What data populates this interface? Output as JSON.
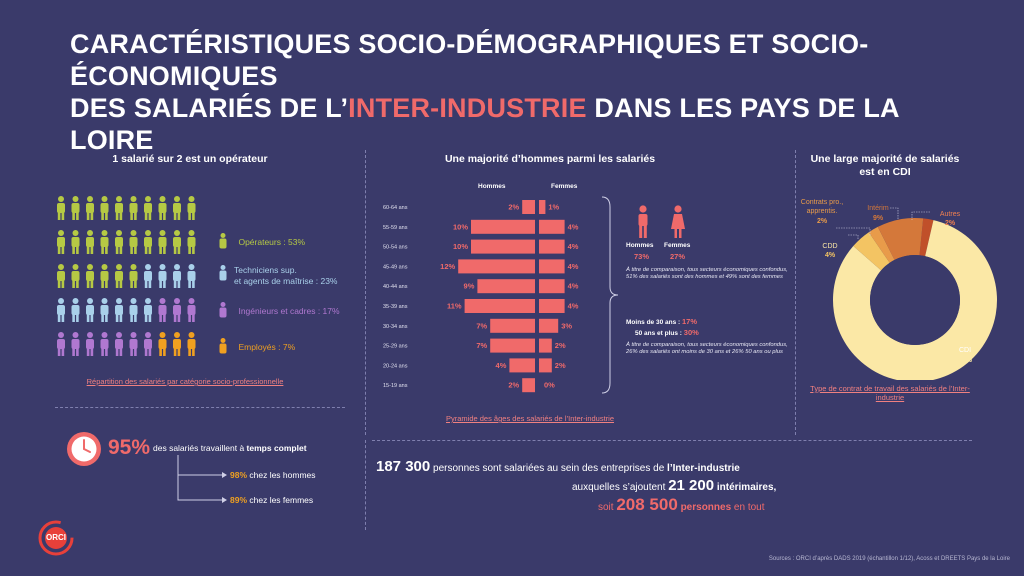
{
  "title": {
    "line1": "CARACTÉRISTIQUES SOCIO-DÉMOGRAPHIQUES ET SOCIO-ÉCONOMIQUES",
    "line2_pre": "DES SALARIÉS DE L’",
    "line2_hl": "INTER-INDUSTRIE",
    "line2_post": " DANS LES PAYS DE LA LOIRE"
  },
  "colors": {
    "background": "#3a3a6a",
    "accent": "#f06a6a",
    "operateurs": "#b6c944",
    "techniciens": "#a9d0ea",
    "ingenieurs": "#b078d0",
    "employes": "#f0a020",
    "cdi": "#fbe8a6",
    "cdd": "#f3c463",
    "interim": "#d4783a",
    "contrats": "#e89b4a",
    "autres": "#c0502a"
  },
  "section1": {
    "title": "1 salarié sur 2 est un opérateur",
    "legend": [
      {
        "label": "Opérateurs : 53%",
        "color": "#b6c944",
        "icon": "person-icon"
      },
      {
        "label": "Techniciens sup.",
        "label2": "et agents de maîtrise : 23%",
        "color": "#a9d0ea",
        "icon": "person-icon"
      },
      {
        "label": "Ingénieurs et cadres : 17%",
        "color": "#b078d0",
        "icon": "person-icon"
      },
      {
        "label": "Employés : 7%",
        "color": "#f0a020",
        "icon": "person-icon"
      }
    ],
    "caption": "Répartition des salariés par catégorie socio-professionnelle"
  },
  "section2": {
    "title": "Une majorité d’hommes parmi les salariés",
    "hommes_label": "Hommes",
    "femmes_label": "Femmes",
    "caption": "Pyramide des âges des salariés de l’Inter-industrie",
    "gender": {
      "hommes_label": "Hommes",
      "hommes_pct": "73%",
      "femmes_label": "Femmes",
      "femmes_pct": "27%"
    },
    "note1": "À titre de comparaison, tous secteurs économiques confondus, 51% des salariés sont des hommes et 49% sont des femmes",
    "age_line1_label": "Moins de 30 ans :",
    "age_line1_value": "17%",
    "age_line2_label": "50 ans et plus :",
    "age_line2_value": "30%",
    "note2": "À titre de comparaison, tous secteurs économiques confondus, 26% des salariés ont moins de 30 ans et 26% 50 ans ou plus"
  },
  "chart_data": [
    {
      "type": "bar",
      "orientation": "horizontal",
      "title": "Une majorité d’hommes parmi les salariés",
      "categories": [
        "60-64 ans",
        "55-59 ans",
        "50-54 ans",
        "45-49 ans",
        "40-44 ans",
        "35-39 ans",
        "30-34 ans",
        "25-29 ans",
        "20-24 ans",
        "15-19 ans"
      ],
      "series": [
        {
          "name": "Hommes",
          "values": [
            2,
            10,
            10,
            12,
            9,
            11,
            7,
            7,
            4,
            2
          ]
        },
        {
          "name": "Femmes",
          "values": [
            1,
            4,
            4,
            4,
            4,
            4,
            3,
            2,
            2,
            0
          ]
        }
      ],
      "value_labels": {
        "Hommes": [
          "2%",
          "10%",
          "10%",
          "12%",
          "9%",
          "11%",
          "7%",
          "7%",
          "4%",
          "2%"
        ],
        "Femmes": [
          "1%",
          "4%",
          "4%",
          "4%",
          "4%",
          "4%",
          "3%",
          "2%",
          "2%",
          "0%"
        ]
      },
      "color": "#f06a6a"
    },
    {
      "type": "pie",
      "title": "Une large majorité de salariés est en CDI",
      "slices": [
        {
          "name": "CDI",
          "value": 82,
          "label": "CDI",
          "pct_label": "82%",
          "color": "#fbe8a6"
        },
        {
          "name": "CDD",
          "value": 4,
          "label": "CDD",
          "pct_label": "4%",
          "color": "#f3c463"
        },
        {
          "name": "Contrats pro., apprentis.",
          "value": 2,
          "label": "Contrats pro., apprentis.",
          "pct_label": "2%",
          "color": "#e89b4a"
        },
        {
          "name": "Intérim",
          "value": 9,
          "label": "Intérim",
          "pct_label": "9%",
          "color": "#d4783a"
        },
        {
          "name": "Autres",
          "value": 2,
          "label": "Autres",
          "pct_label": "2%",
          "color": "#c0502a"
        }
      ],
      "caption": "Type de contrat de travail des salariés de l’Inter-industrie"
    }
  ],
  "section3": {
    "title_line1": "Une large majorité de salariés",
    "title_line2": "est en CDI",
    "label_contrats_1": "Contrats pro.,",
    "label_contrats_2": "apprentis.",
    "caption": "Type de contrat de travail des salariés de l’Inter-industrie"
  },
  "section4": {
    "pct": "95%",
    "text_pre": "des salariés travaillent à ",
    "text_bold": "temps complet",
    "hommes_pct": "98%",
    "hommes_label": " chez les hommes",
    "femmes_pct": "89%",
    "femmes_label": " chez les femmes",
    "clock_icon": "clock-icon"
  },
  "section5": {
    "l1_num": "187 300",
    "l1_text": " personnes sont salariées au sein des entreprises de ",
    "l1_bold": "l’Inter-industrie",
    "l2_text": "auxquelles s’ajoutent ",
    "l2_num": "21 200",
    "l2_bold": " intérimaires,",
    "l3_text": "soit ",
    "l3_num": "208 500",
    "l3_bold": " personnes",
    "l3_end": " en tout"
  },
  "logo": {
    "text": "ORCI"
  },
  "source": "Sources : ORCI d’après DADS 2019 (échantillon 1/12), Acoss et DREETS Pays de la Loire"
}
